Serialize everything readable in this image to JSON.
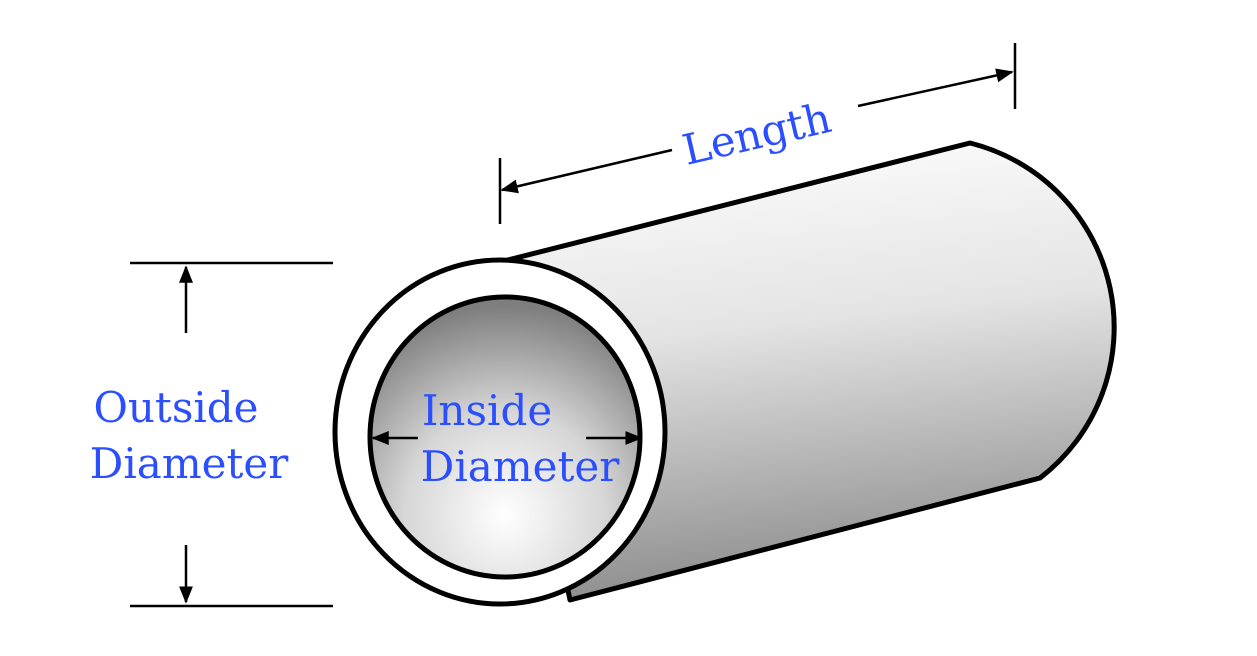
{
  "labels": {
    "length": "Length",
    "outside_line1": "Outside",
    "outside_line2": "Diameter",
    "inside_line1": "Inside",
    "inside_line2": "Diameter"
  },
  "colors": {
    "label": "#2b4fff",
    "outline": "#000000",
    "tube_light": "#ffffff",
    "tube_dark": "#8f8f8f",
    "wall": "#ffffff"
  }
}
